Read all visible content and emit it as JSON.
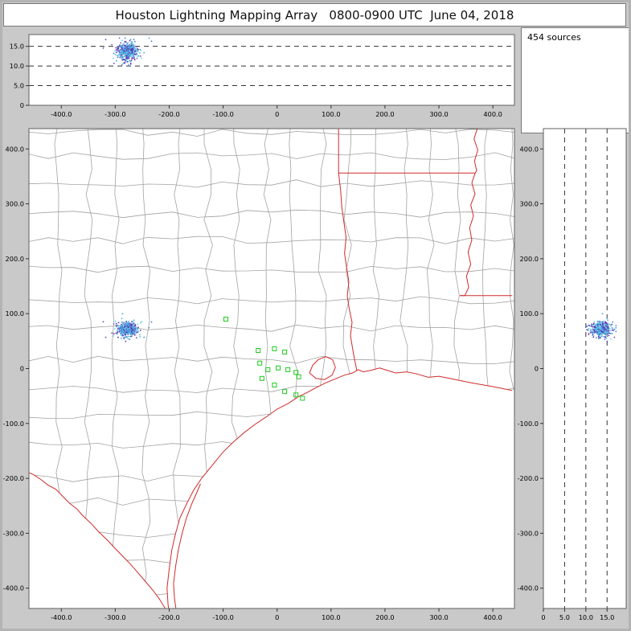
{
  "title_bar": {
    "title": "Houston Lightning Mapping Array   0800-0900 UTC  June 04, 2018"
  },
  "sources_panel": {
    "label": "454 sources"
  },
  "colors": {
    "background": "#c9c9c9",
    "panel_bg": "#ffffff",
    "panel_border": "#5f5f5f",
    "county_line": "#a2a2a2",
    "state_border": "#cf2b2b",
    "station": "#1ecb1e",
    "dashed_line": "#333333"
  },
  "chart_data": {
    "type": "scatter",
    "title": "Houston Lightning Mapping Array 0800-0900 UTC June 04, 2018",
    "source_count": 454,
    "panels": {
      "altitude_vs_ew": {
        "position": "top",
        "xlim": [
          -460,
          440
        ],
        "ylim": [
          0,
          18
        ],
        "x_tick_values": [
          -400,
          -300,
          -200,
          -100,
          0,
          100,
          200,
          300,
          400
        ],
        "x_tick_labels": [
          "-400.0",
          "-300.0",
          "-200.0",
          "-100.0",
          "0",
          "100.0",
          "200.0",
          "300.0",
          "400.0"
        ],
        "y_tick_values": [
          0,
          5,
          10,
          15
        ],
        "y_tick_labels": [
          "0",
          "5.0",
          "10.0",
          "15.0"
        ],
        "dashed_levels": [
          5,
          10,
          15
        ]
      },
      "plan_view": {
        "position": "main",
        "xlim": [
          -460,
          440
        ],
        "ylim": [
          -437,
          437
        ],
        "x_tick_values": [
          -400,
          -300,
          -200,
          -100,
          0,
          100,
          200,
          300,
          400
        ],
        "x_tick_labels": [
          "-400.0",
          "-300.0",
          "-200.0",
          "-100.0",
          "0",
          "100.0",
          "200.0",
          "300.0",
          "400.0"
        ],
        "y_tick_values": [
          400,
          300,
          200,
          100,
          0,
          -100,
          -200,
          -300,
          -400
        ],
        "y_tick_labels": [
          "400.0",
          "300.0",
          "200.0",
          "100.0",
          "0",
          "-100.0",
          "-200.0",
          "-300.0",
          "-400.0"
        ]
      },
      "altitude_vs_ns": {
        "position": "right",
        "xlim": [
          0,
          19.5
        ],
        "ylim": [
          -437,
          437
        ],
        "x_tick_values": [
          0,
          5,
          10,
          15
        ],
        "x_tick_labels": [
          "0",
          "5.0",
          "10.0",
          "15.0"
        ],
        "y_tick_values": [
          400,
          300,
          200,
          100,
          0,
          -100,
          -200,
          -300,
          -400
        ],
        "y_tick_labels": [
          "400.0",
          "300.0",
          "200.0",
          "100.0",
          "0",
          "-100.0",
          "-200.0",
          "-300.0",
          "-400.0"
        ],
        "dashed_levels": [
          5,
          10,
          15
        ]
      }
    },
    "lightning_cluster": {
      "count": 454,
      "ew_km_mean": -278,
      "ew_km_sd": 9,
      "ns_km_mean": 72,
      "ns_km_sd": 7,
      "alt_km_mean": 13.6,
      "alt_km_sd": 1.15,
      "colors": [
        "#58c8e8",
        "#49b4dd",
        "#6fd3f0",
        "#4a77d4",
        "#5c30a8",
        "#6b3cc0",
        "#3f9fd8"
      ]
    },
    "stations_km": [
      [
        -95,
        90
      ],
      [
        -35,
        33
      ],
      [
        -5,
        36
      ],
      [
        14,
        30
      ],
      [
        -32,
        10
      ],
      [
        -17,
        -2
      ],
      [
        2,
        1
      ],
      [
        20,
        -2
      ],
      [
        -28,
        -18
      ],
      [
        -5,
        -30
      ],
      [
        35,
        -7
      ],
      [
        40,
        -15
      ],
      [
        14,
        -42
      ],
      [
        35,
        -48
      ],
      [
        47,
        -54
      ]
    ]
  }
}
